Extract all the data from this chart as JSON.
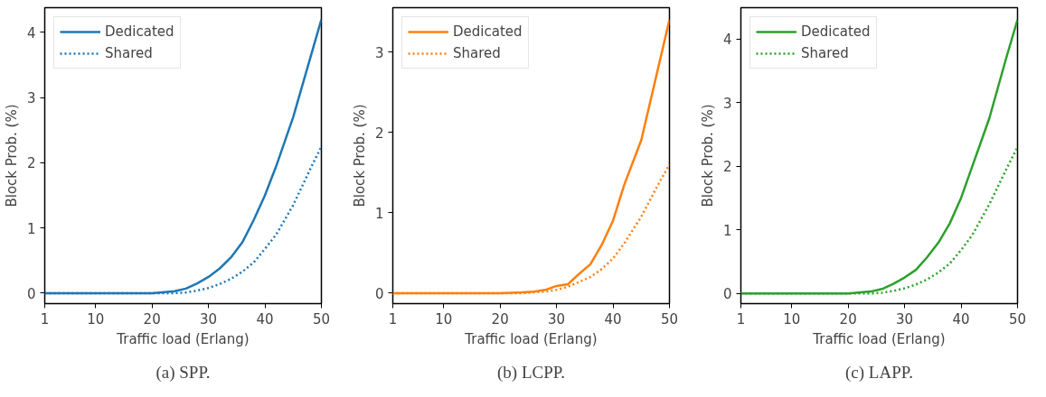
{
  "chart_data": [
    {
      "type": "line",
      "xlabel": "Traffic load (Erlang)",
      "ylabel": "Block Prob. (%)",
      "annotations": [
        "(a) SPP."
      ],
      "x": [
        1,
        10,
        20,
        24,
        26,
        28,
        30,
        32,
        34,
        36,
        38,
        40,
        42,
        45,
        48,
        50
      ],
      "xlim": [
        1,
        50
      ],
      "xticks": [
        1,
        10,
        20,
        30,
        40,
        50
      ],
      "ylim": [
        -0.16,
        4.38
      ],
      "yticks": [
        0,
        1,
        2,
        3,
        4
      ],
      "legend": "top left",
      "grid": false,
      "marker": "none",
      "series": [
        {
          "name": "Dedicated",
          "color": "#1f77b4",
          "line_style": "solid",
          "values": [
            0,
            0,
            0,
            0.03,
            0.07,
            0.15,
            0.25,
            0.38,
            0.55,
            0.78,
            1.12,
            1.5,
            1.95,
            2.7,
            3.6,
            4.2
          ]
        },
        {
          "name": "Shared",
          "color": "#1f77b4",
          "line_style": "dotted",
          "values": [
            0,
            0,
            0,
            0,
            0.01,
            0.04,
            0.08,
            0.14,
            0.22,
            0.33,
            0.47,
            0.68,
            0.9,
            1.35,
            1.9,
            2.25
          ]
        }
      ]
    },
    {
      "type": "line",
      "xlabel": "Traffic load (Erlang)",
      "ylabel": "Block Prob. (%)",
      "annotations": [
        "(b) LCPP."
      ],
      "x": [
        1,
        10,
        20,
        24,
        26,
        28,
        30,
        32,
        34,
        36,
        38,
        40,
        42,
        45,
        48,
        50
      ],
      "xlim": [
        1,
        50
      ],
      "xticks": [
        1,
        10,
        20,
        30,
        40,
        50
      ],
      "ylim": [
        -0.13,
        3.55
      ],
      "yticks": [
        0,
        1,
        2,
        3
      ],
      "legend": "top left",
      "grid": false,
      "marker": "none",
      "series": [
        {
          "name": "Dedicated",
          "color": "#ff7f0e",
          "line_style": "solid",
          "values": [
            0,
            0,
            0,
            0.01,
            0.02,
            0.04,
            0.09,
            0.11,
            0.24,
            0.36,
            0.6,
            0.9,
            1.35,
            1.9,
            2.8,
            3.4
          ]
        },
        {
          "name": "Shared",
          "color": "#ff7f0e",
          "line_style": "dotted",
          "values": [
            0,
            0,
            0,
            0,
            0.01,
            0.02,
            0.04,
            0.08,
            0.14,
            0.2,
            0.3,
            0.43,
            0.62,
            0.95,
            1.35,
            1.6
          ]
        }
      ]
    },
    {
      "type": "line",
      "xlabel": "Traffic load (Erlang)",
      "ylabel": "Block Prob. (%)",
      "annotations": [
        "(c) LAPP."
      ],
      "x": [
        1,
        10,
        20,
        24,
        26,
        28,
        30,
        32,
        34,
        36,
        38,
        40,
        42,
        45,
        48,
        50
      ],
      "xlim": [
        1,
        50
      ],
      "xticks": [
        1,
        10,
        20,
        30,
        40,
        50
      ],
      "ylim": [
        -0.16,
        4.49
      ],
      "yticks": [
        0,
        1,
        2,
        3,
        4
      ],
      "legend": "top left",
      "grid": false,
      "marker": "none",
      "series": [
        {
          "name": "Dedicated",
          "color": "#2ca02c",
          "line_style": "solid",
          "values": [
            0,
            0,
            0,
            0.03,
            0.07,
            0.15,
            0.25,
            0.37,
            0.57,
            0.8,
            1.1,
            1.5,
            2.0,
            2.75,
            3.7,
            4.3
          ]
        },
        {
          "name": "Shared",
          "color": "#2ca02c",
          "line_style": "dotted",
          "values": [
            0,
            0,
            0,
            0,
            0.01,
            0.04,
            0.08,
            0.14,
            0.22,
            0.33,
            0.47,
            0.68,
            0.92,
            1.4,
            1.95,
            2.3
          ]
        }
      ]
    }
  ]
}
